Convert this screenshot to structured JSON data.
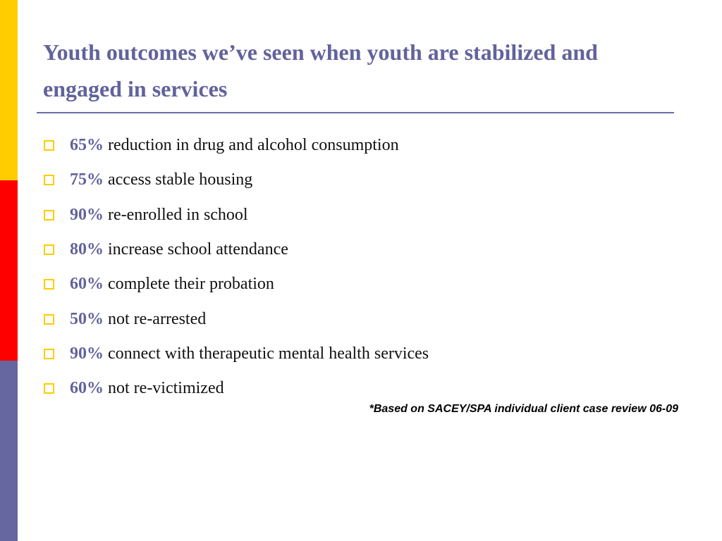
{
  "slide": {
    "title": "Youth outcomes we’ve seen when youth are stabilized and engaged in services",
    "bullets": [
      {
        "pct": "65%",
        "text": "reduction in drug and alcohol consumption"
      },
      {
        "pct": "75%",
        "text": "access stable housing"
      },
      {
        "pct": "90%",
        "text": "re-enrolled in school"
      },
      {
        "pct": "80%",
        "text": "increase school attendance"
      },
      {
        "pct": "60%",
        "text": "complete their probation"
      },
      {
        "pct": "50%",
        "text": "not re-arrested"
      },
      {
        "pct": "90%",
        "text": "connect with therapeutic mental health services"
      },
      {
        "pct": "60%",
        "text": "not re-victimized"
      }
    ],
    "footnote": "*Based on SACEY/SPA individual client case review 06-09"
  },
  "colors": {
    "title": "#62629c",
    "accent_yellow": "#ffcc00",
    "accent_red": "#ff0000",
    "accent_blue": "#6666a0"
  },
  "icons": {
    "bullet": "hollow-square-bullet-icon"
  }
}
